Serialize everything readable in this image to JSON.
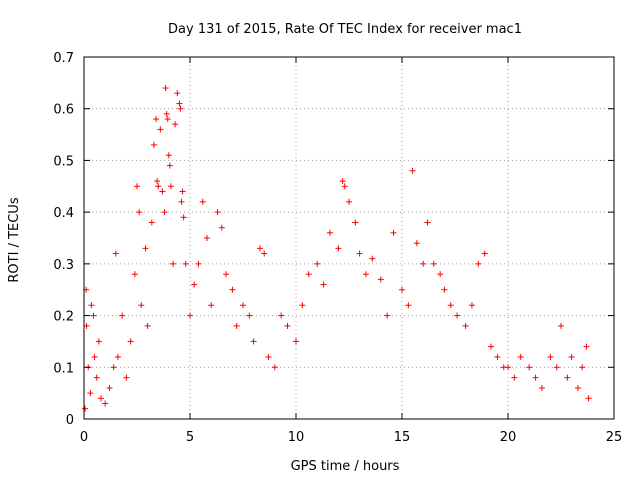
{
  "chart_data": {
    "type": "scatter",
    "title": "Day 131 of 2015, Rate Of TEC Index for receiver mac1",
    "xlabel": "GPS time / hours",
    "ylabel": "ROTI / TECUs",
    "xlim": [
      0,
      25
    ],
    "ylim": [
      0,
      0.7
    ],
    "xticks": [
      "0",
      "5",
      "10",
      "15",
      "20",
      "25"
    ],
    "yticks": [
      "0",
      "0.1",
      "0.2",
      "0.3",
      "0.4",
      "0.5",
      "0.6",
      "0.7"
    ],
    "grid": true,
    "marker": "+",
    "color": "#ff0000",
    "series": [
      {
        "points": [
          [
            0.05,
            0.02
          ],
          [
            0.1,
            0.25
          ],
          [
            0.12,
            0.18
          ],
          [
            0.2,
            0.1
          ],
          [
            0.3,
            0.05
          ],
          [
            0.35,
            0.22
          ],
          [
            0.45,
            0.2
          ],
          [
            0.5,
            0.12
          ],
          [
            0.6,
            0.08
          ],
          [
            0.7,
            0.15
          ],
          [
            0.8,
            0.04
          ],
          [
            1.0,
            0.03
          ],
          [
            1.2,
            0.06
          ],
          [
            1.4,
            0.1
          ],
          [
            1.5,
            0.32
          ],
          [
            1.6,
            0.12
          ],
          [
            1.8,
            0.2
          ],
          [
            2.0,
            0.08
          ],
          [
            2.2,
            0.15
          ],
          [
            2.4,
            0.28
          ],
          [
            2.5,
            0.45
          ],
          [
            2.6,
            0.4
          ],
          [
            2.7,
            0.22
          ],
          [
            2.9,
            0.33
          ],
          [
            3.0,
            0.18
          ],
          [
            3.2,
            0.38
          ],
          [
            3.3,
            0.53
          ],
          [
            3.4,
            0.58
          ],
          [
            3.45,
            0.46
          ],
          [
            3.5,
            0.45
          ],
          [
            3.6,
            0.56
          ],
          [
            3.7,
            0.44
          ],
          [
            3.8,
            0.4
          ],
          [
            3.85,
            0.64
          ],
          [
            3.9,
            0.59
          ],
          [
            3.95,
            0.58
          ],
          [
            4.0,
            0.51
          ],
          [
            4.05,
            0.49
          ],
          [
            4.1,
            0.45
          ],
          [
            4.2,
            0.3
          ],
          [
            4.3,
            0.57
          ],
          [
            4.4,
            0.63
          ],
          [
            4.5,
            0.61
          ],
          [
            4.55,
            0.6
          ],
          [
            4.6,
            0.42
          ],
          [
            4.65,
            0.44
          ],
          [
            4.7,
            0.39
          ],
          [
            4.8,
            0.3
          ],
          [
            5.0,
            0.2
          ],
          [
            5.2,
            0.26
          ],
          [
            5.4,
            0.3
          ],
          [
            5.6,
            0.42
          ],
          [
            5.8,
            0.35
          ],
          [
            6.0,
            0.22
          ],
          [
            6.3,
            0.4
          ],
          [
            6.5,
            0.37
          ],
          [
            6.7,
            0.28
          ],
          [
            7.0,
            0.25
          ],
          [
            7.2,
            0.18
          ],
          [
            7.5,
            0.22
          ],
          [
            7.8,
            0.2
          ],
          [
            8.0,
            0.15
          ],
          [
            8.3,
            0.33
          ],
          [
            8.5,
            0.32
          ],
          [
            8.7,
            0.12
          ],
          [
            9.0,
            0.1
          ],
          [
            9.3,
            0.2
          ],
          [
            9.6,
            0.18
          ],
          [
            10.0,
            0.15
          ],
          [
            10.3,
            0.22
          ],
          [
            10.6,
            0.28
          ],
          [
            11.0,
            0.3
          ],
          [
            11.3,
            0.26
          ],
          [
            11.6,
            0.36
          ],
          [
            12.0,
            0.33
          ],
          [
            12.2,
            0.46
          ],
          [
            12.3,
            0.45
          ],
          [
            12.5,
            0.42
          ],
          [
            12.8,
            0.38
          ],
          [
            13.0,
            0.32
          ],
          [
            13.3,
            0.28
          ],
          [
            13.6,
            0.31
          ],
          [
            14.0,
            0.27
          ],
          [
            14.3,
            0.2
          ],
          [
            14.6,
            0.36
          ],
          [
            15.0,
            0.25
          ],
          [
            15.3,
            0.22
          ],
          [
            15.5,
            0.48
          ],
          [
            15.7,
            0.34
          ],
          [
            16.0,
            0.3
          ],
          [
            16.2,
            0.38
          ],
          [
            16.5,
            0.3
          ],
          [
            16.8,
            0.28
          ],
          [
            17.0,
            0.25
          ],
          [
            17.3,
            0.22
          ],
          [
            17.6,
            0.2
          ],
          [
            18.0,
            0.18
          ],
          [
            18.3,
            0.22
          ],
          [
            18.6,
            0.3
          ],
          [
            18.9,
            0.32
          ],
          [
            19.2,
            0.14
          ],
          [
            19.5,
            0.12
          ],
          [
            19.8,
            0.1
          ],
          [
            20.0,
            0.1
          ],
          [
            20.3,
            0.08
          ],
          [
            20.6,
            0.12
          ],
          [
            21.0,
            0.1
          ],
          [
            21.3,
            0.08
          ],
          [
            21.6,
            0.06
          ],
          [
            22.0,
            0.12
          ],
          [
            22.3,
            0.1
          ],
          [
            22.5,
            0.18
          ],
          [
            22.8,
            0.08
          ],
          [
            23.0,
            0.12
          ],
          [
            23.3,
            0.06
          ],
          [
            23.5,
            0.1
          ],
          [
            23.7,
            0.14
          ],
          [
            23.8,
            0.04
          ]
        ]
      }
    ]
  }
}
